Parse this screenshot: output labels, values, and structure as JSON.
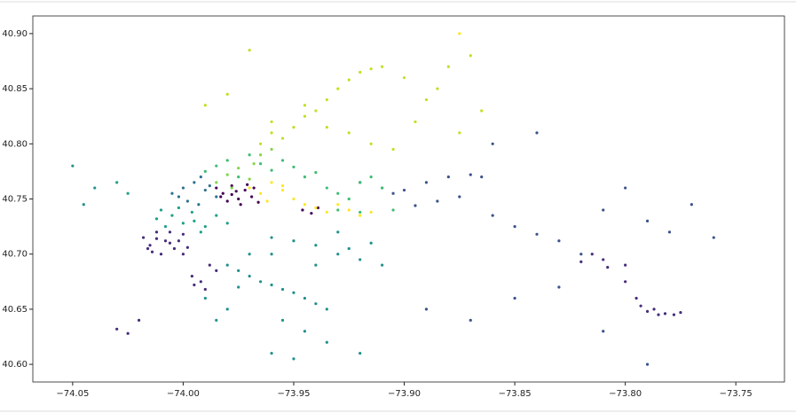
{
  "chart_data": {
    "type": "scatter",
    "xlim": [
      -74.068,
      -73.728
    ],
    "ylim": [
      40.584,
      40.916
    ],
    "xticks": [
      {
        "value": -74.05,
        "label": "−74.05"
      },
      {
        "value": -74.0,
        "label": "−74.00"
      },
      {
        "value": -73.95,
        "label": "−73.95"
      },
      {
        "value": -73.9,
        "label": "−73.90"
      },
      {
        "value": -73.85,
        "label": "−73.85"
      },
      {
        "value": -73.8,
        "label": "−73.80"
      },
      {
        "value": -73.75,
        "label": "−73.75"
      }
    ],
    "yticks": [
      {
        "value": 40.6,
        "label": "40.60"
      },
      40.65,
      {
        "value": 40.7,
        "label": "40.70"
      },
      40.75,
      {
        "value": 40.8,
        "label": "40.80"
      },
      40.85,
      {
        "value": 40.9,
        "label": "40.90"
      }
    ],
    "series": [
      {
        "color": "#440154",
        "x": [
          -73.985,
          -73.982,
          -73.978,
          -73.975,
          -73.972,
          -73.969,
          -73.966,
          -73.98,
          -73.976,
          -73.971,
          -73.983,
          -73.974,
          -73.968,
          -73.978,
          -73.946,
          -73.942,
          -73.939
        ],
        "values": [
          40.76,
          40.755,
          40.762,
          40.75,
          40.758,
          40.752,
          40.747,
          40.748,
          40.757,
          40.763,
          40.752,
          40.745,
          40.76,
          40.754,
          40.74,
          40.737,
          40.742
        ]
      },
      {
        "color": "#472d7b",
        "x": [
          -74.018,
          -74.015,
          -74.012,
          -74.008,
          -74.004,
          -74.0,
          -74.014,
          -74.01,
          -74.006,
          -74.016,
          -74.002,
          -73.998,
          -74.012,
          -74.006,
          -74.0,
          -73.996,
          -73.992,
          -73.988,
          -73.985,
          -73.99,
          -73.995,
          -74.03,
          -74.025,
          -74.02,
          -73.815,
          -73.808,
          -73.8,
          -73.795,
          -73.793,
          -73.79,
          -73.787,
          -73.782,
          -73.778,
          -73.775,
          -73.785,
          -73.8,
          -73.81,
          -73.82
        ],
        "values": [
          40.715,
          40.708,
          40.72,
          40.712,
          40.705,
          40.718,
          40.702,
          40.7,
          40.71,
          40.705,
          40.712,
          40.706,
          40.714,
          40.72,
          40.7,
          40.68,
          40.675,
          40.69,
          40.685,
          40.668,
          40.672,
          40.632,
          40.628,
          40.64,
          40.7,
          40.688,
          40.675,
          40.66,
          40.653,
          40.648,
          40.65,
          40.646,
          40.645,
          40.647,
          40.645,
          40.69,
          40.695,
          40.693
        ]
      },
      {
        "color": "#3b528b",
        "x": [
          -73.92,
          -73.91,
          -73.9,
          -73.89,
          -73.88,
          -73.87,
          -73.865,
          -73.875,
          -73.885,
          -73.895,
          -73.905,
          -73.86,
          -73.85,
          -73.84,
          -73.83,
          -73.82,
          -73.81,
          -73.86,
          -73.84,
          -73.8,
          -73.79,
          -73.78,
          -73.77,
          -73.76,
          -73.85,
          -73.87,
          -73.89,
          -73.83,
          -73.81,
          -73.79
        ],
        "values": [
          40.765,
          40.76,
          40.758,
          40.765,
          40.77,
          40.772,
          40.77,
          40.752,
          40.748,
          40.744,
          40.755,
          40.735,
          40.725,
          40.718,
          40.712,
          40.7,
          40.74,
          40.8,
          40.81,
          40.76,
          40.73,
          40.72,
          40.745,
          40.715,
          40.66,
          40.64,
          40.65,
          40.67,
          40.63,
          40.6
        ]
      },
      {
        "color": "#2c728e",
        "x": [
          -74.005,
          -74.0,
          -73.995,
          -73.99,
          -73.985,
          -73.998,
          -73.993,
          -73.988,
          -74.002,
          -73.992
        ],
        "values": [
          40.755,
          40.76,
          40.765,
          40.758,
          40.752,
          40.748,
          40.745,
          40.762,
          40.752,
          40.77
        ]
      },
      {
        "color": "#21918c",
        "x": [
          -73.98,
          -73.975,
          -73.97,
          -73.965,
          -73.96,
          -73.955,
          -73.95,
          -73.945,
          -73.94,
          -73.935,
          -73.93,
          -73.925,
          -73.92,
          -73.915,
          -73.91,
          -73.96,
          -73.95,
          -73.94,
          -73.97,
          -73.93,
          -73.955,
          -73.945,
          -73.935,
          -73.99,
          -73.98,
          -73.96,
          -73.95,
          -73.92,
          -73.94,
          -73.96,
          -73.975,
          -73.985,
          -74.04,
          -74.045,
          -74.05
        ],
        "values": [
          40.69,
          40.685,
          40.68,
          40.675,
          40.672,
          40.668,
          40.665,
          40.66,
          40.655,
          40.65,
          40.7,
          40.705,
          40.695,
          40.71,
          40.69,
          40.715,
          40.712,
          40.708,
          40.7,
          40.72,
          40.64,
          40.63,
          40.62,
          40.66,
          40.65,
          40.61,
          40.605,
          40.61,
          40.69,
          40.7,
          40.67,
          40.64,
          40.76,
          40.745,
          40.78
        ]
      },
      {
        "color": "#1fa187",
        "x": [
          -74.01,
          -74.005,
          -74.0,
          -73.995,
          -73.99,
          -74.008,
          -74.002,
          -73.996,
          -73.985,
          -73.98,
          -74.012,
          -73.992,
          -74.025,
          -74.03
        ],
        "values": [
          40.74,
          40.735,
          40.728,
          40.73,
          40.725,
          40.725,
          40.742,
          40.738,
          40.735,
          40.728,
          40.732,
          40.72,
          40.755,
          40.765
        ]
      },
      {
        "color": "#3fbc73",
        "x": [
          -73.99,
          -73.985,
          -73.98,
          -73.975,
          -73.97,
          -73.965,
          -73.96,
          -73.955,
          -73.95,
          -73.945,
          -73.94,
          -73.935,
          -73.93,
          -73.925,
          -73.92,
          -73.915,
          -73.91,
          -73.93,
          -73.92,
          -73.905
        ],
        "values": [
          40.775,
          40.78,
          40.785,
          40.77,
          40.79,
          40.782,
          40.776,
          40.785,
          40.779,
          40.77,
          40.774,
          40.76,
          40.755,
          40.75,
          40.765,
          40.77,
          40.76,
          40.74,
          40.738,
          40.74
        ]
      },
      {
        "color": "#84d44b",
        "x": [
          -73.985,
          -73.98,
          -73.975,
          -73.97,
          -73.965,
          -73.96,
          -73.978,
          -73.968
        ],
        "values": [
          40.765,
          40.772,
          40.778,
          40.768,
          40.79,
          40.795,
          40.76,
          40.782
        ]
      },
      {
        "color": "#c2df23",
        "x": [
          -73.965,
          -73.96,
          -73.955,
          -73.95,
          -73.945,
          -73.94,
          -73.935,
          -73.93,
          -73.925,
          -73.92,
          -73.915,
          -73.91,
          -73.9,
          -73.89,
          -73.88,
          -73.87,
          -73.96,
          -73.945,
          -73.935,
          -73.925,
          -73.915,
          -73.905,
          -73.895,
          -73.885,
          -73.875,
          -73.865,
          -73.98,
          -73.99,
          -73.97
        ],
        "values": [
          40.8,
          40.81,
          40.805,
          40.815,
          40.825,
          40.83,
          40.84,
          40.85,
          40.858,
          40.865,
          40.868,
          40.87,
          40.86,
          40.84,
          40.87,
          40.88,
          40.82,
          40.835,
          40.815,
          40.81,
          40.8,
          40.795,
          40.82,
          40.85,
          40.81,
          40.83,
          40.845,
          40.835,
          40.885
        ]
      },
      {
        "color": "#fde725",
        "x": [
          -73.97,
          -73.965,
          -73.96,
          -73.955,
          -73.95,
          -73.945,
          -73.94,
          -73.935,
          -73.93,
          -73.925,
          -73.92,
          -73.915,
          -73.962,
          -73.955,
          -73.875
        ],
        "values": [
          40.76,
          40.755,
          40.765,
          40.758,
          40.75,
          40.745,
          40.742,
          40.738,
          40.745,
          40.74,
          40.735,
          40.738,
          40.748,
          40.762,
          40.9
        ]
      }
    ]
  }
}
